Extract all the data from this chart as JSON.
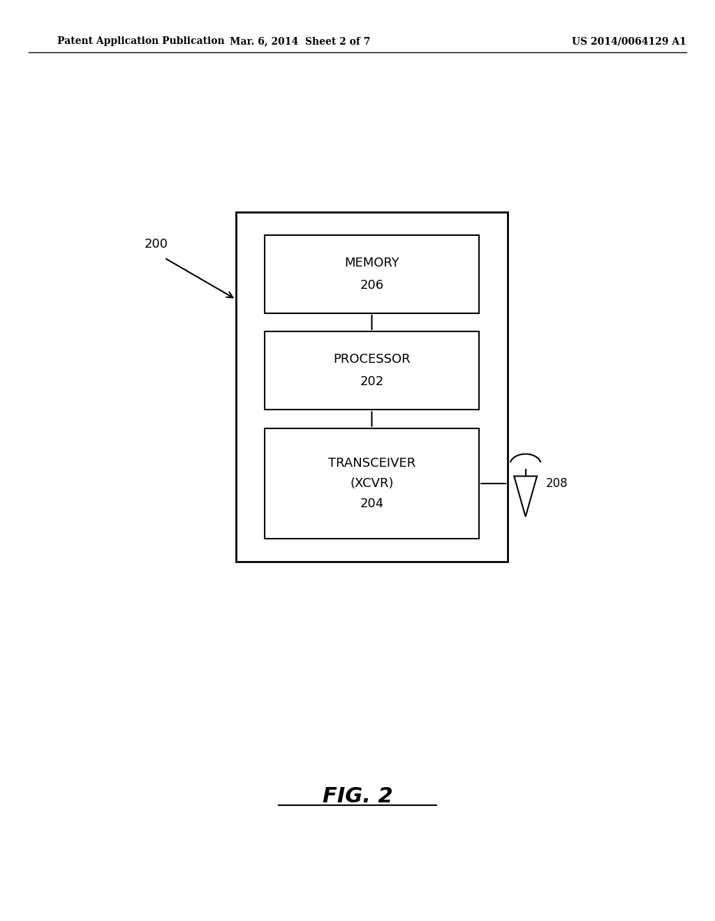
{
  "header_left": "Patent Application Publication",
  "header_mid": "Mar. 6, 2014  Sheet 2 of 7",
  "header_right": "US 2014/0064129 A1",
  "fig_label": "FIG. 2",
  "label_200": "200",
  "label_206": "206",
  "label_202": "202",
  "label_204": "204",
  "label_208": "208",
  "text_memory": "MEMORY",
  "text_processor": "PROCESSOR",
  "text_transceiver_line1": "TRANSCEIVER",
  "text_transceiver_line2": "(XCVR)",
  "bg_color": "#ffffff",
  "line_color": "#000000",
  "font_color": "#000000"
}
